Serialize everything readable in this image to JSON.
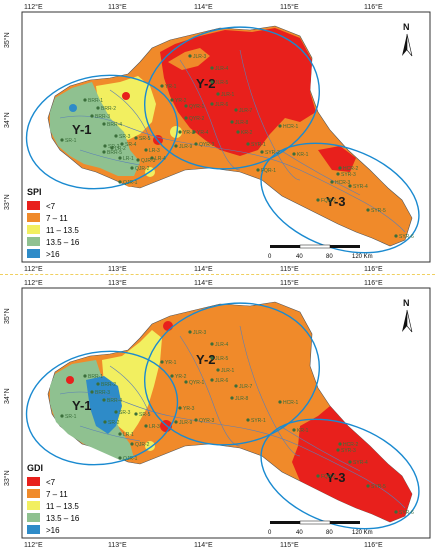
{
  "panels": [
    {
      "index_label": "SPI",
      "lon_ticks": [
        "112°E",
        "113°E",
        "114°E",
        "115°E",
        "116°E"
      ],
      "lat_ticks": [
        "35°N",
        "34°N",
        "33°N"
      ],
      "north_label": "N",
      "scale": {
        "ticks": [
          "0",
          "40",
          "80",
          "120 Km"
        ]
      },
      "regions": [
        "Y-1",
        "Y-2",
        "Y-3"
      ],
      "legend": [
        {
          "label": "<7",
          "color": "#e8201c"
        },
        {
          "label": "7 – 11",
          "color": "#f08a2a"
        },
        {
          "label": "11 – 13.5",
          "color": "#f2ef60"
        },
        {
          "label": "13.5 – 16",
          "color": "#8fc190"
        },
        {
          "label": ">16",
          "color": "#2e8bc8"
        }
      ],
      "stations": [
        "BRR-1",
        "BRR-2",
        "BRR-3",
        "BRR-4",
        "BRR-5",
        "SR-1",
        "SR-2",
        "SR-3",
        "SR-4",
        "SR-5",
        "LR-1",
        "LR-2",
        "LR-3",
        "LR-4",
        "QJR-1",
        "QJR-2",
        "QJR-3",
        "JLR-1",
        "JLR-3",
        "JLR-4",
        "JLR-5",
        "JLR-6",
        "JLR-7",
        "JLR-8",
        "JLR-9",
        "YR-1",
        "YR-2",
        "YR-3",
        "YR-4",
        "YR-5",
        "QYR-1",
        "QYR-2",
        "QYR-3",
        "SYR-1",
        "SYR-2",
        "SYR-3",
        "SYR-4",
        "SYR-5",
        "SYR-6",
        "HCR-1",
        "HCR-2",
        "HCR-3",
        "FQR-1",
        "FQR-2",
        "FQR-3",
        "KR-1",
        "KR-2",
        "KR-3",
        "KR-4",
        "KR-5",
        "KR-6",
        "KR-7",
        "KR-8",
        "KR-9"
      ]
    },
    {
      "index_label": "GDI",
      "lon_ticks": [
        "112°E",
        "113°E",
        "114°E",
        "115°E",
        "116°E"
      ],
      "lat_ticks": [
        "35°N",
        "34°N",
        "33°N"
      ],
      "north_label": "N",
      "scale": {
        "ticks": [
          "0",
          "40",
          "80",
          "120 Km"
        ]
      },
      "regions": [
        "Y-1",
        "Y-2",
        "Y-3"
      ],
      "legend": [
        {
          "label": "<7",
          "color": "#e8201c"
        },
        {
          "label": "7 – 11",
          "color": "#f08a2a"
        },
        {
          "label": "11 – 13.5",
          "color": "#f2ef60"
        },
        {
          "label": "13.5 – 16",
          "color": "#8fc190"
        },
        {
          "label": ">16",
          "color": "#2e8bc8"
        }
      ]
    }
  ]
}
